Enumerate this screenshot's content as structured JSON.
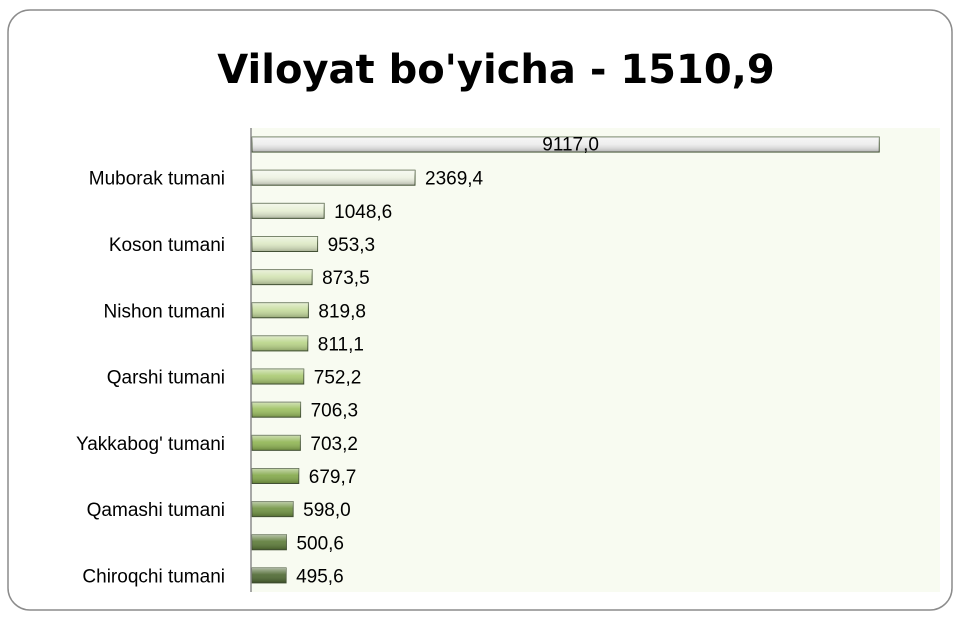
{
  "chart_data": {
    "type": "bar",
    "orientation": "horizontal",
    "title": "Viloyat bo'yicha - 1510,9",
    "categories": [
      null,
      "Muborak tumani",
      null,
      "Koson tumani",
      null,
      "Nishon tumani",
      null,
      "Qarshi tumani",
      null,
      "Yakkabog' tumani",
      null,
      "Qamashi tumani",
      null,
      "Chiroqchi tumani"
    ],
    "values": [
      9117.0,
      2369.4,
      1048.6,
      953.3,
      873.5,
      819.8,
      811.1,
      752.2,
      706.3,
      703.2,
      679.7,
      598.0,
      500.6,
      495.6
    ],
    "value_labels": [
      "9117,0",
      "2369,4",
      "1048,6",
      "953,3",
      "873,5",
      "819,8",
      "811,1",
      "752,2",
      "706,3",
      "703,2",
      "679,7",
      "598,0",
      "500,6",
      "495,6"
    ],
    "colors": [
      "#ededed",
      "#eef3e2",
      "#e6efd3",
      "#dde9c4",
      "#d3e3b3",
      "#c6dc9d",
      "#b8d486",
      "#a9c970",
      "#9bbf5e",
      "#8fb552",
      "#82a848",
      "#6f9240",
      "#5b7a36",
      "#4d6830"
    ],
    "xlim": [
      0,
      10000
    ]
  }
}
